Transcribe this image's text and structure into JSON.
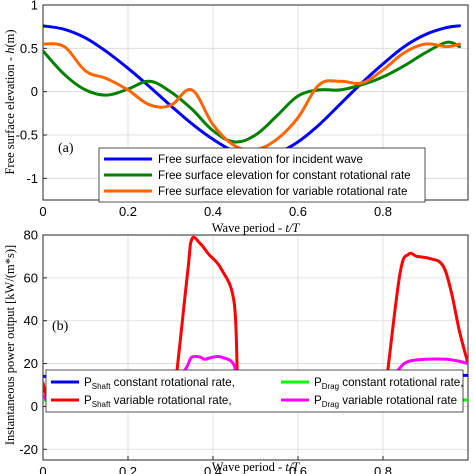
{
  "chart_data": [
    {
      "type": "line",
      "panel_label": "(a)",
      "xlabel_prefix": "Wave period - ",
      "xlabel_var": "t/T",
      "ylabel_prefix": "Free surface elevation - ",
      "ylabel_var": "h",
      "ylabel_unit": "(m)",
      "xlim": [
        0,
        1
      ],
      "ylim": [
        -1.25,
        1
      ],
      "xticks": [
        0,
        0.2,
        0.4,
        0.6,
        0.8
      ],
      "xtick_labels": [
        "0",
        "0.2",
        "0.4",
        "0.6",
        "0.8"
      ],
      "yticks": [
        1,
        0.5,
        0,
        -0.5,
        -1
      ],
      "ytick_labels": [
        "1",
        "0.5",
        "0",
        "-0.5",
        "-1"
      ],
      "grid": true,
      "legend_position": "bottom-right",
      "x": [
        0,
        0.05,
        0.1,
        0.15,
        0.2,
        0.25,
        0.3,
        0.35,
        0.4,
        0.45,
        0.5,
        0.55,
        0.6,
        0.65,
        0.7,
        0.75,
        0.8,
        0.85,
        0.9,
        0.95,
        0.98
      ],
      "series": [
        {
          "name": "Free surface elevation for incident wave",
          "color": "#0000ff",
          "values": [
            0.76,
            0.72,
            0.62,
            0.46,
            0.27,
            0.06,
            -0.16,
            -0.37,
            -0.55,
            -0.69,
            -0.75,
            -0.71,
            -0.58,
            -0.38,
            -0.14,
            0.1,
            0.32,
            0.52,
            0.66,
            0.74,
            0.76
          ]
        },
        {
          "name": "Free surface elevation for constant rotational rate",
          "color": "#008000",
          "values": [
            0.47,
            0.2,
            0.02,
            -0.04,
            0.03,
            0.12,
            0.0,
            -0.2,
            -0.45,
            -0.58,
            -0.5,
            -0.28,
            -0.05,
            0.02,
            0.02,
            0.08,
            0.17,
            0.3,
            0.45,
            0.57,
            0.52
          ]
        },
        {
          "name": "Free surface elevation for variable rotational rate",
          "color": "#ff6600",
          "values": [
            0.55,
            0.52,
            0.24,
            0.15,
            0.02,
            -0.15,
            -0.16,
            0.02,
            -0.38,
            -0.62,
            -0.67,
            -0.55,
            -0.3,
            0.08,
            0.12,
            0.1,
            0.25,
            0.45,
            0.55,
            0.52,
            0.55
          ]
        }
      ]
    },
    {
      "type": "line",
      "panel_label": "(b)",
      "xlabel_prefix": "Wave period - ",
      "xlabel_var": "t/T",
      "ylabel": "Instantaneous power output  [kW/(m*s)]",
      "xlim": [
        0,
        1
      ],
      "ylim": [
        -25,
        80
      ],
      "xticks": [
        0,
        0.2,
        0.4,
        0.6,
        0.8
      ],
      "xtick_labels": [
        "0",
        "0.2",
        "0.4",
        "0.6",
        "0.8"
      ],
      "yticks": [
        80,
        60,
        40,
        20,
        0,
        -20
      ],
      "ytick_labels": [
        "80",
        "60",
        "40",
        "20",
        "0",
        "-20"
      ],
      "grid": true,
      "legend_position": "bottom",
      "series": [
        {
          "name_main": "P",
          "name_sub": "Shaft",
          "name_rest": " constant rotational rate,",
          "color": "#0000ff",
          "x": [
            0,
            0.02,
            0.1,
            0.15,
            0.2,
            0.25,
            0.3,
            0.35,
            0.4,
            0.45,
            0.5,
            0.55,
            0.6,
            0.65,
            0.7,
            0.75,
            0.8,
            0.85,
            0.9,
            0.95,
            1.0
          ],
          "values": [
            14,
            14,
            14.5,
            15.5,
            16,
            15,
            13,
            12,
            12.5,
            14,
            15,
            14.5,
            14,
            13.5,
            13,
            13,
            12.5,
            12.5,
            13.5,
            14.5,
            14.5
          ]
        },
        {
          "name_main": "P",
          "name_sub": "Drag",
          "name_rest": " constant rotational rate,",
          "color": "#00ff00",
          "x": [
            0,
            0.05,
            0.1,
            0.2,
            0.3,
            0.4,
            0.5,
            0.6,
            0.7,
            0.8,
            0.9,
            1.0
          ],
          "values": [
            3,
            3,
            3,
            3,
            3,
            3,
            3,
            3,
            3,
            3,
            3,
            3
          ]
        },
        {
          "name_main": "P",
          "name_sub": "Shaft",
          "name_rest": " variable rotational rate,",
          "color": "#ff0000",
          "x": [
            0,
            0.01,
            0.03,
            0.05,
            0.1,
            0.15,
            0.18,
            0.2,
            0.25,
            0.3,
            0.31,
            0.34,
            0.35,
            0.37,
            0.39,
            0.42,
            0.45,
            0.46,
            0.48,
            0.55,
            0.6,
            0.65,
            0.7,
            0.8,
            0.81,
            0.84,
            0.86,
            0.88,
            0.91,
            0.94,
            0.96,
            0.98,
            1.0
          ],
          "values": [
            11,
            4,
            1,
            0.5,
            0.5,
            1,
            5,
            1,
            0.5,
            1,
            8,
            62,
            78,
            76,
            71,
            64,
            48,
            6,
            1,
            0.5,
            0.5,
            0.5,
            1,
            2,
            15,
            62,
            71,
            70,
            69,
            66,
            54,
            35,
            20
          ]
        },
        {
          "name_main": "P",
          "name_sub": "Drag",
          "name_rest": " variable rotational rate",
          "color": "#ff00ff",
          "x": [
            0,
            0.02,
            0.05,
            0.1,
            0.18,
            0.2,
            0.25,
            0.3,
            0.32,
            0.34,
            0.35,
            0.37,
            0.38,
            0.4,
            0.42,
            0.45,
            0.46,
            0.48,
            0.55,
            0.65,
            0.75,
            0.8,
            0.82,
            0.84,
            0.86,
            0.9,
            0.95,
            0.98,
            1.0
          ],
          "values": [
            5,
            1,
            0.5,
            0.5,
            2,
            0.5,
            0.5,
            1,
            12,
            19,
            23,
            23,
            22,
            23,
            23,
            19,
            4,
            1,
            0.5,
            0.5,
            0.5,
            1,
            12,
            18,
            21,
            22,
            22,
            21,
            20
          ]
        }
      ]
    }
  ]
}
